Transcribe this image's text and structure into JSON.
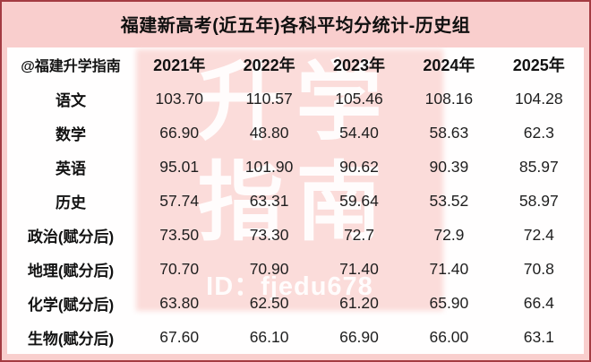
{
  "title": "福建新高考(近五年)各科平均分统计-历史组",
  "watermark": {
    "line1": "升学",
    "line2": "指南",
    "id_text": "ID：fjedu678"
  },
  "table": {
    "headers": [
      "@福建升学指南",
      "2021年",
      "2022年",
      "2023年",
      "2024年",
      "2025年"
    ],
    "rows": [
      {
        "label": "语文",
        "values": [
          "103.70",
          "110.57",
          "105.46",
          "108.16",
          "104.28"
        ]
      },
      {
        "label": "数学",
        "values": [
          "66.90",
          "48.80",
          "54.40",
          "58.63",
          "62.3"
        ]
      },
      {
        "label": "英语",
        "values": [
          "95.01",
          "101.90",
          "90.62",
          "90.39",
          "85.97"
        ]
      },
      {
        "label": "历史",
        "values": [
          "57.74",
          "63.31",
          "59.64",
          "53.52",
          "58.97"
        ]
      },
      {
        "label": "政治(赋分后)",
        "values": [
          "73.50",
          "73.30",
          "72.7",
          "72.9",
          "72.4"
        ]
      },
      {
        "label": "地理(赋分后)",
        "values": [
          "70.70",
          "70.90",
          "71.40",
          "71.40",
          "70.8"
        ]
      },
      {
        "label": "化学(赋分后)",
        "values": [
          "63.80",
          "62.50",
          "61.20",
          "65.90",
          "66.4"
        ]
      },
      {
        "label": "生物(赋分后)",
        "values": [
          "67.60",
          "66.10",
          "66.90",
          "66.00",
          "63.1"
        ]
      }
    ]
  },
  "colors": {
    "page_pink": "#f9cecd",
    "watermark_pink": "#fbdcda",
    "border_red": "#a43b42",
    "card_white": "#fffefe",
    "text_black": "#121212"
  },
  "chart_data": {
    "type": "table",
    "title": "福建新高考(近五年)各科平均分统计-历史组",
    "categories": [
      "2021年",
      "2022年",
      "2023年",
      "2024年",
      "2025年"
    ],
    "series": [
      {
        "name": "语文",
        "values": [
          103.7,
          110.57,
          105.46,
          108.16,
          104.28
        ]
      },
      {
        "name": "数学",
        "values": [
          66.9,
          48.8,
          54.4,
          58.63,
          62.3
        ]
      },
      {
        "name": "英语",
        "values": [
          95.01,
          101.9,
          90.62,
          90.39,
          85.97
        ]
      },
      {
        "name": "历史",
        "values": [
          57.74,
          63.31,
          59.64,
          53.52,
          58.97
        ]
      },
      {
        "name": "政治(赋分后)",
        "values": [
          73.5,
          73.3,
          72.7,
          72.9,
          72.4
        ]
      },
      {
        "name": "地理(赋分后)",
        "values": [
          70.7,
          70.9,
          71.4,
          71.4,
          70.8
        ]
      },
      {
        "name": "化学(赋分后)",
        "values": [
          63.8,
          62.5,
          61.2,
          65.9,
          66.4
        ]
      },
      {
        "name": "生物(赋分后)",
        "values": [
          67.6,
          66.1,
          66.9,
          66.0,
          63.1
        ]
      }
    ],
    "source_tag": "@福建升学指南"
  }
}
